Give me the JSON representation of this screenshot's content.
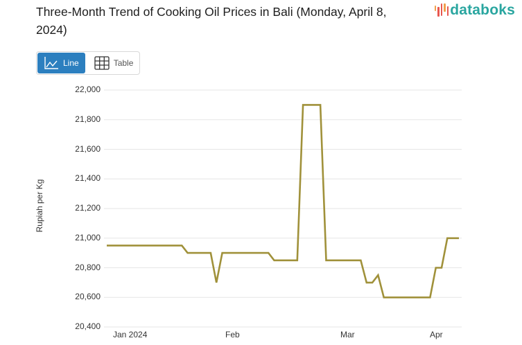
{
  "header": {
    "title": "Three-Month Trend of Cooking Oil Prices in Bali (Monday, April 8, 2024)",
    "logo_text": "databoks"
  },
  "view_toggle": {
    "line_label": "Line",
    "table_label": "Table",
    "active": "Line"
  },
  "colors": {
    "line": "#a0913a",
    "grid": "#e6e6e6",
    "active_button": "#2c7fbf",
    "logo_text": "#2aa6a0"
  },
  "chart_data": {
    "type": "line",
    "title": "Three-Month Trend of Cooking Oil Prices in Bali (Monday, April 8, 2024)",
    "xlabel": "",
    "ylabel": "Rupiah per Kg",
    "ylim": [
      20400,
      22000
    ],
    "yticks": [
      20400,
      20600,
      20800,
      21000,
      21200,
      21400,
      21600,
      21800,
      22000
    ],
    "ytick_labels": [
      "20,400",
      "20,600",
      "20,800",
      "21,000",
      "21,200",
      "21,400",
      "21,600",
      "21,800",
      "22,000"
    ],
    "xtick_labels": [
      "Jan 2024",
      "Feb",
      "Mar",
      "Apr"
    ],
    "grid": true,
    "legend": null,
    "series": [
      {
        "name": "Rupiah per Kg",
        "values": [
          20950,
          20950,
          20950,
          20950,
          20950,
          20950,
          20950,
          20950,
          20950,
          20950,
          20950,
          20950,
          20950,
          20950,
          20900,
          20900,
          20900,
          20900,
          20900,
          20700,
          20900,
          20900,
          20900,
          20900,
          20900,
          20900,
          20900,
          20900,
          20900,
          20850,
          20850,
          20850,
          20850,
          20850,
          21900,
          21900,
          21900,
          21900,
          20850,
          20850,
          20850,
          20850,
          20850,
          20850,
          20850,
          20700,
          20700,
          20750,
          20600,
          20600,
          20600,
          20600,
          20600,
          20600,
          20600,
          20600,
          20600,
          20800,
          20800,
          21000,
          21000,
          21000
        ]
      }
    ]
  }
}
